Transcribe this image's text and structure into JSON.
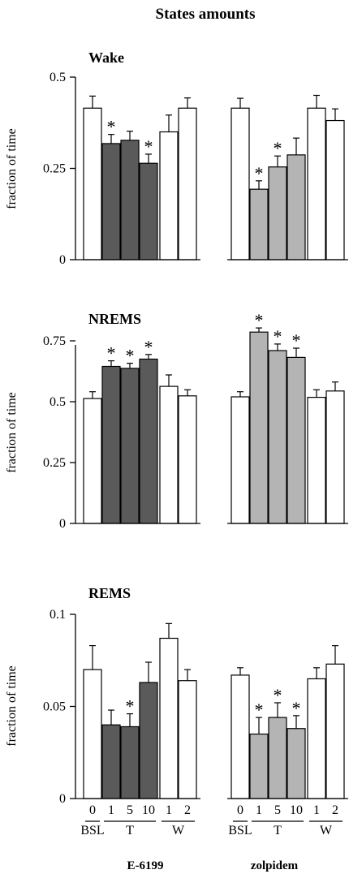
{
  "title": "States amounts",
  "conditions": [
    {
      "name": "BSL",
      "sessions": [
        "0"
      ]
    },
    {
      "name": "T",
      "sessions": [
        "1",
        "5",
        "10"
      ]
    },
    {
      "name": "W",
      "sessions": [
        "1",
        "2"
      ]
    }
  ],
  "groups": [
    {
      "name": "E-6199",
      "fill": "#5a5a5a"
    },
    {
      "name": "zolpidem",
      "fill": "#b4b4b4"
    }
  ],
  "baseline_fill": "#ffffff",
  "significance_marker": "*",
  "chart_data": [
    {
      "type": "bar",
      "title": "Wake",
      "ylabel": "fraction of time",
      "ylim": [
        0,
        0.5
      ],
      "yticks": [
        0,
        0.25,
        0.5
      ],
      "ytick_labels": [
        "0",
        "0.25",
        "0.5"
      ],
      "categories": [
        "0",
        "1",
        "5",
        "10",
        "1",
        "2"
      ],
      "series": [
        {
          "name": "E-6199",
          "values": [
            0.415,
            0.318,
            0.327,
            0.264,
            0.35,
            0.415
          ],
          "errors": [
            0.033,
            0.025,
            0.025,
            0.025,
            0.046,
            0.028
          ],
          "significant": [
            false,
            true,
            false,
            true,
            false,
            false
          ]
        },
        {
          "name": "zolpidem",
          "values": [
            0.415,
            0.193,
            0.254,
            0.287,
            0.415,
            0.381
          ],
          "errors": [
            0.027,
            0.023,
            0.03,
            0.046,
            0.035,
            0.032
          ],
          "significant": [
            false,
            true,
            true,
            false,
            false,
            false
          ]
        }
      ]
    },
    {
      "type": "bar",
      "title": "NREMS",
      "ylabel": "fraction of time",
      "ylim": [
        0,
        0.85
      ],
      "yticks": [
        0,
        0.25,
        0.5,
        0.75
      ],
      "ytick_labels": [
        "0",
        "0.25",
        "0.5",
        "0.75"
      ],
      "categories": [
        "0",
        "1",
        "5",
        "10",
        "1",
        "2"
      ],
      "series": [
        {
          "name": "E-6199",
          "values": [
            0.513,
            0.645,
            0.637,
            0.675,
            0.563,
            0.524
          ],
          "errors": [
            0.028,
            0.023,
            0.021,
            0.019,
            0.047,
            0.025
          ],
          "significant": [
            false,
            true,
            true,
            true,
            false,
            false
          ]
        },
        {
          "name": "zolpidem",
          "values": [
            0.52,
            0.786,
            0.71,
            0.682,
            0.518,
            0.544
          ],
          "errors": [
            0.021,
            0.017,
            0.027,
            0.038,
            0.031,
            0.037
          ],
          "significant": [
            false,
            true,
            true,
            true,
            false,
            false
          ]
        }
      ]
    },
    {
      "type": "bar",
      "title": "REMS",
      "ylabel": "fraction of time",
      "ylim": [
        0,
        0.1
      ],
      "yticks": [
        0,
        0.05,
        0.1
      ],
      "ytick_labels": [
        "0",
        "0.05",
        "0.1"
      ],
      "categories": [
        "0",
        "1",
        "5",
        "10",
        "1",
        "2"
      ],
      "series": [
        {
          "name": "E-6199",
          "values": [
            0.07,
            0.04,
            0.039,
            0.063,
            0.087,
            0.064
          ],
          "errors": [
            0.013,
            0.008,
            0.007,
            0.011,
            0.008,
            0.006
          ],
          "significant": [
            false,
            false,
            true,
            false,
            false,
            false
          ]
        },
        {
          "name": "zolpidem",
          "values": [
            0.067,
            0.035,
            0.044,
            0.038,
            0.065,
            0.073
          ],
          "errors": [
            0.004,
            0.009,
            0.008,
            0.007,
            0.006,
            0.01
          ],
          "significant": [
            false,
            true,
            true,
            true,
            false,
            false
          ]
        }
      ]
    }
  ]
}
